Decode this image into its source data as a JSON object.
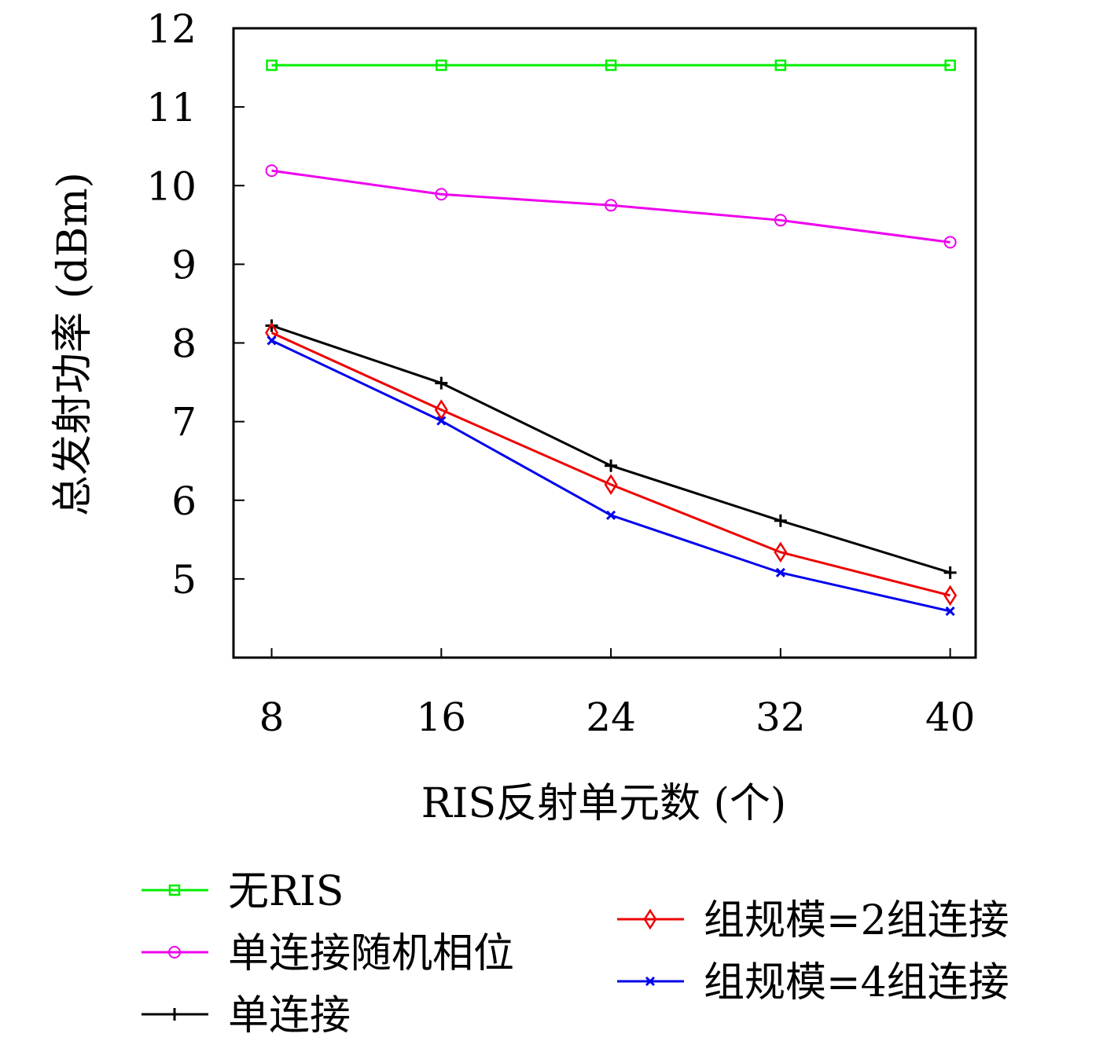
{
  "chart_data": {
    "type": "line",
    "title": "",
    "xlabel": "RIS反射单元数 (个)",
    "ylabel": "总发射功率 (dBm)",
    "x": [
      8,
      16,
      24,
      32,
      40
    ],
    "xticks": [
      "8",
      "16",
      "24",
      "32",
      "40"
    ],
    "yticks": [
      "5",
      "6",
      "7",
      "8",
      "9",
      "10",
      "11",
      "12"
    ],
    "xlim": [
      6.2,
      41.2
    ],
    "ylim": [
      4.0,
      12.0
    ],
    "grid": false,
    "legend_position": "bottom",
    "series": [
      {
        "name": "无RIS",
        "color": "#00ee00",
        "marker": "square",
        "values": [
          11.53,
          11.53,
          11.53,
          11.53,
          11.53
        ]
      },
      {
        "name": "单连接随机相位",
        "color": "#ee00ee",
        "marker": "circle",
        "values": [
          10.19,
          9.89,
          9.75,
          9.56,
          9.28
        ]
      },
      {
        "name": "单连接",
        "color": "#000000",
        "marker": "plus",
        "values": [
          8.22,
          7.49,
          6.44,
          5.74,
          5.08
        ]
      },
      {
        "name": "组规模=2组连接",
        "color": "#ee0000",
        "marker": "diamond",
        "values": [
          8.13,
          7.15,
          6.2,
          5.34,
          4.79
        ]
      },
      {
        "name": "组规模=4组连接",
        "color": "#0000ee",
        "marker": "x",
        "values": [
          8.03,
          7.01,
          5.81,
          5.08,
          4.59
        ]
      }
    ]
  }
}
